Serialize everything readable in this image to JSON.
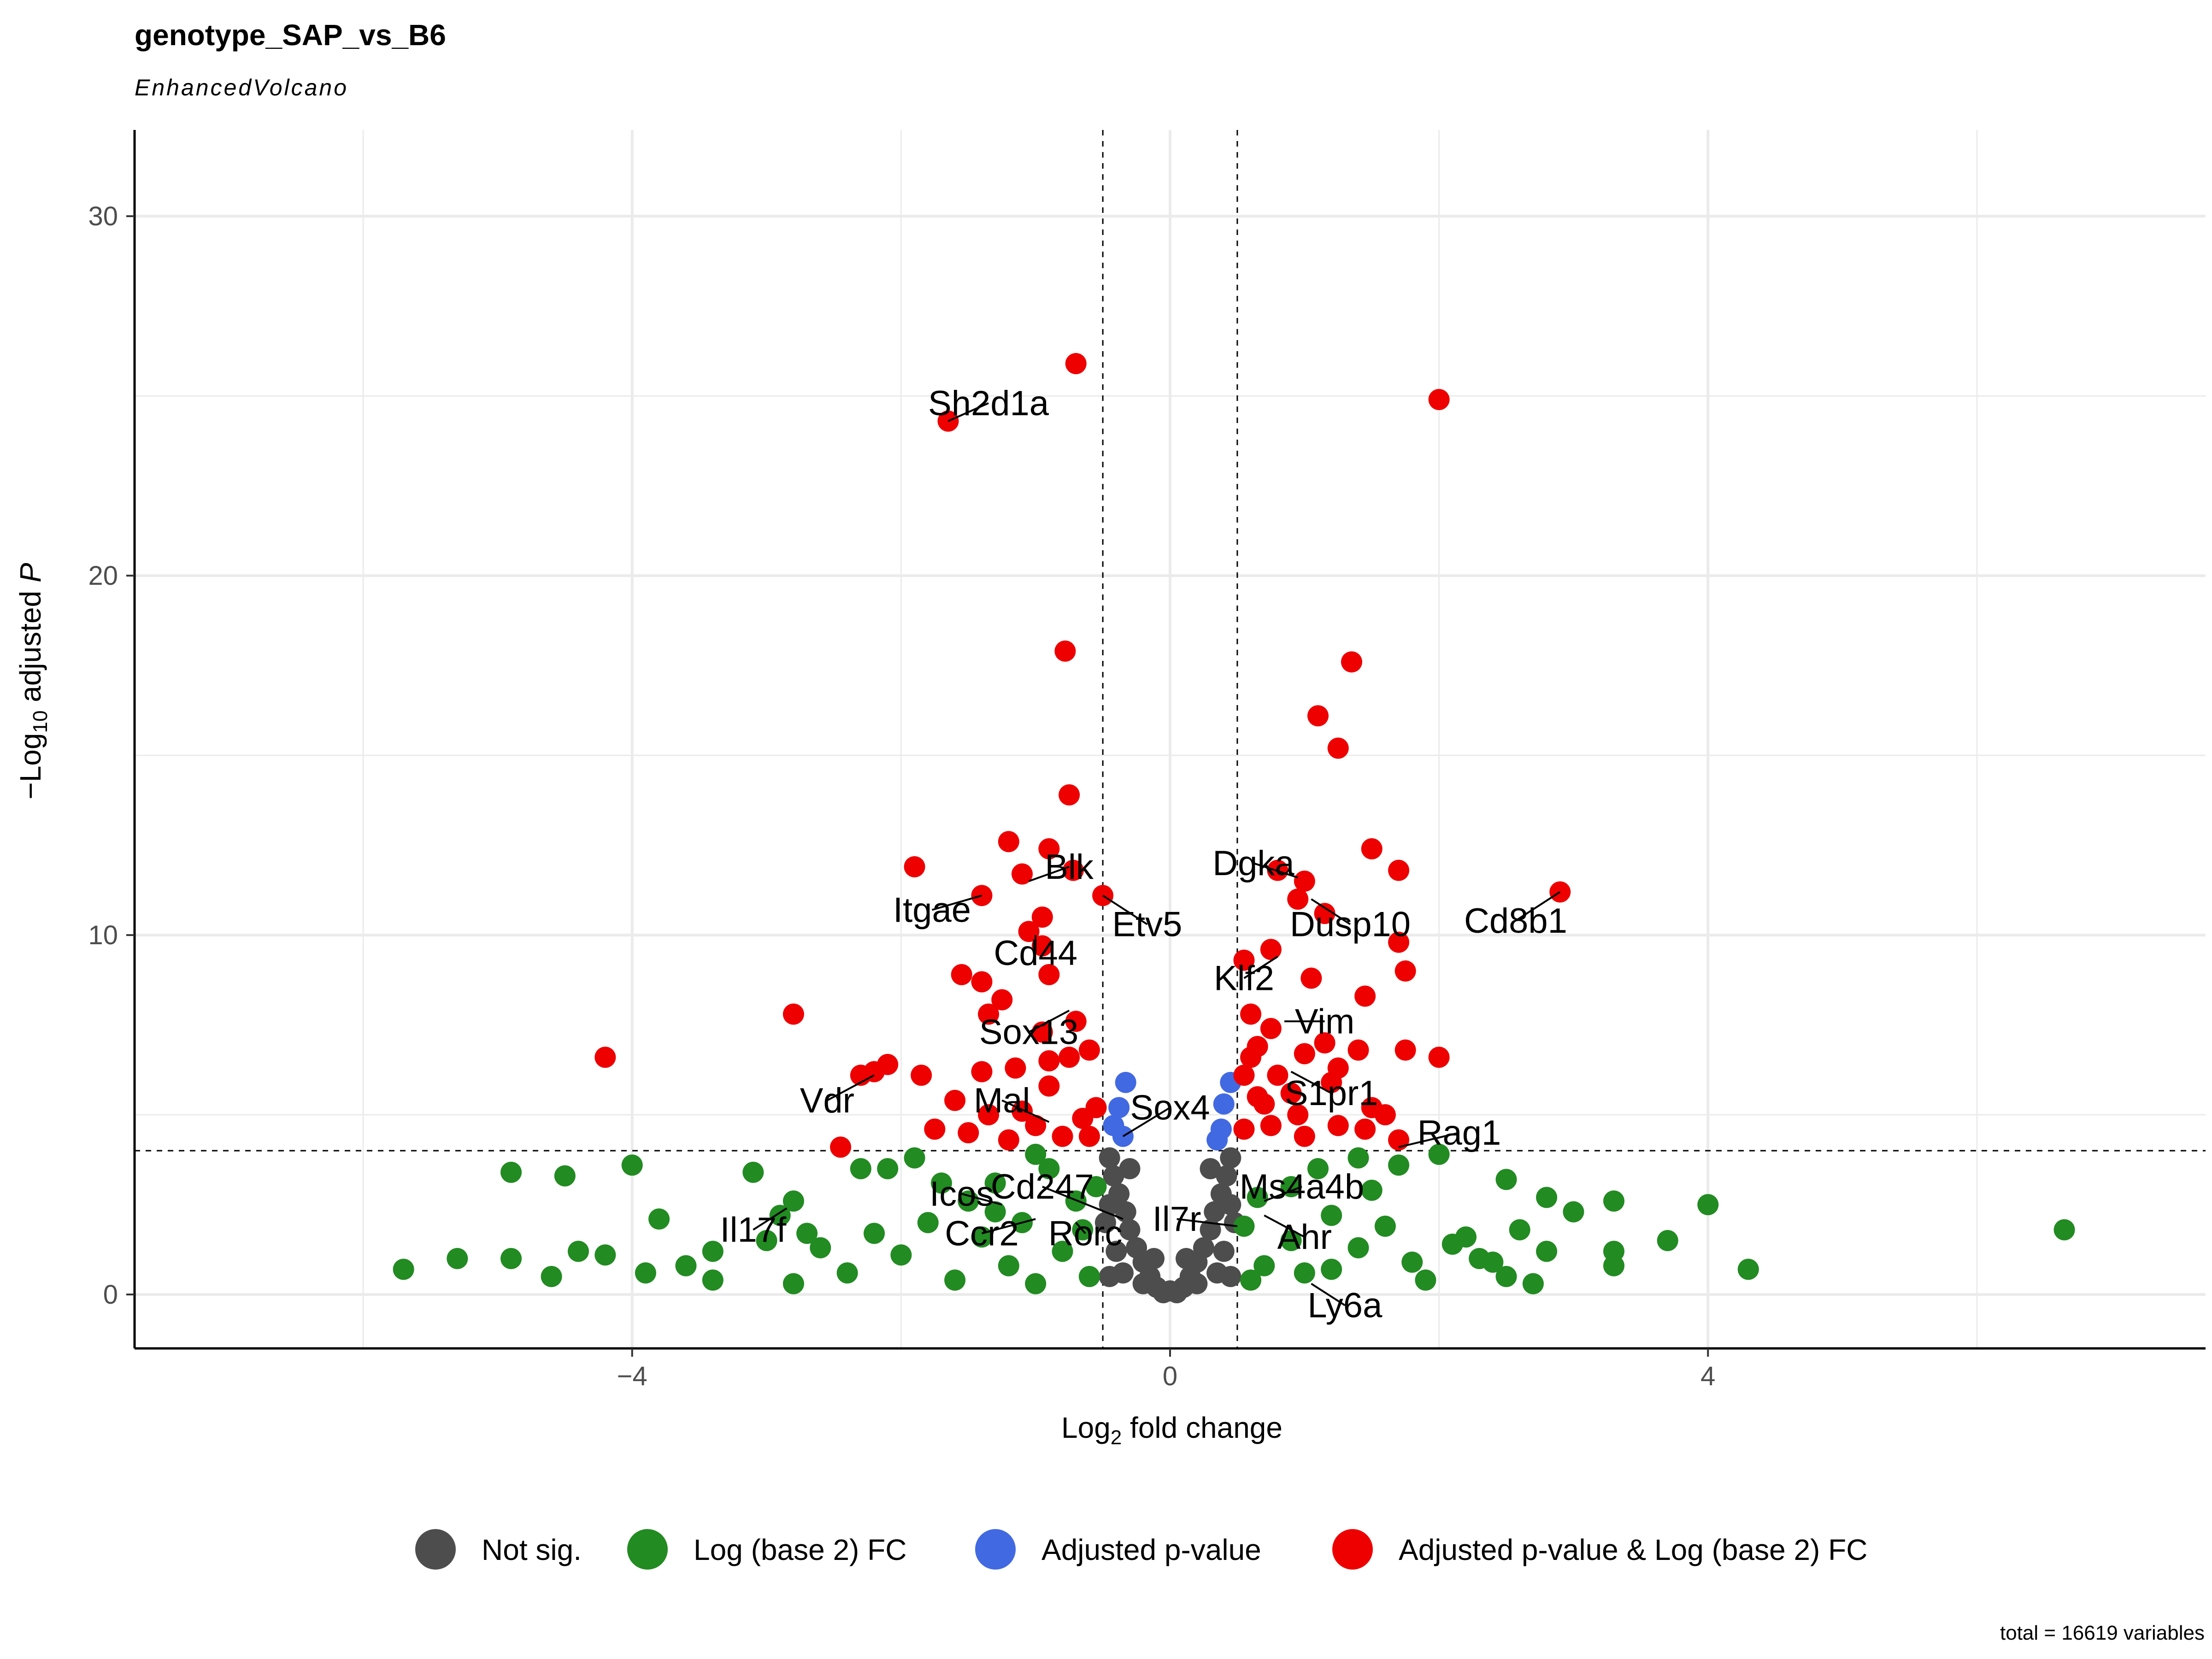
{
  "chart_data": {
    "type": "scatter",
    "title": "genotype_SAP_vs_B6",
    "subtitle": "EnhancedVolcano",
    "xlabel": {
      "main": "Log",
      "sub": "2",
      "rest": " fold change"
    },
    "ylabel": {
      "pre": "−Log",
      "sub": "10",
      "mid": " adjusted ",
      "italic": "P"
    },
    "xlim": [
      -7.7,
      7.7
    ],
    "ylim": [
      -1.5,
      32.4
    ],
    "x_ticks": [
      -4,
      0,
      4
    ],
    "y_ticks": [
      0,
      10,
      20,
      30
    ],
    "grid": true,
    "fc_cutoff": 0.5,
    "p_cutoff_log10": 4,
    "legend_position": "bottom",
    "caption": "total = 16619 variables",
    "colors": {
      "ns": "#4d4d4d",
      "fc": "#228b22",
      "p": "#4169e1",
      "both": "#ee0000"
    },
    "series": [
      {
        "name": "Not sig.",
        "key": "ns"
      },
      {
        "name": "Log (base 2) FC",
        "key": "fc"
      },
      {
        "name": "Adjusted p-value",
        "key": "p"
      },
      {
        "name": "Adjusted p-value & Log (base 2) FC",
        "key": "both"
      }
    ],
    "points": {
      "both": [
        [
          -0.7,
          25.9
        ],
        [
          2.0,
          24.9
        ],
        [
          -1.65,
          24.3
        ],
        [
          -0.78,
          17.9
        ],
        [
          1.35,
          17.6
        ],
        [
          1.1,
          16.1
        ],
        [
          1.25,
          15.2
        ],
        [
          -0.75,
          13.9
        ],
        [
          1.5,
          12.4
        ],
        [
          -1.2,
          12.6
        ],
        [
          -0.9,
          12.4
        ],
        [
          -1.9,
          11.9
        ],
        [
          -0.72,
          11.8
        ],
        [
          1.7,
          11.8
        ],
        [
          -1.1,
          11.7
        ],
        [
          2.9,
          11.2
        ],
        [
          -0.5,
          11.1
        ],
        [
          -1.4,
          11.1
        ],
        [
          0.8,
          11.8
        ],
        [
          1.0,
          11.5
        ],
        [
          0.95,
          11.0
        ],
        [
          1.15,
          10.6
        ],
        [
          -0.95,
          10.5
        ],
        [
          -1.05,
          10.1
        ],
        [
          1.7,
          9.8
        ],
        [
          0.75,
          9.6
        ],
        [
          -0.95,
          9.7
        ],
        [
          0.55,
          9.3
        ],
        [
          -1.55,
          8.9
        ],
        [
          -0.9,
          8.9
        ],
        [
          1.05,
          8.8
        ],
        [
          1.75,
          9.0
        ],
        [
          -1.4,
          8.7
        ],
        [
          -1.25,
          8.2
        ],
        [
          1.45,
          8.3
        ],
        [
          -2.8,
          7.8
        ],
        [
          -1.35,
          7.8
        ],
        [
          0.6,
          7.8
        ],
        [
          -0.7,
          7.6
        ],
        [
          -0.95,
          7.3
        ],
        [
          0.75,
          7.4
        ],
        [
          0.65,
          6.9
        ],
        [
          1.15,
          7.0
        ],
        [
          1.75,
          6.8
        ],
        [
          2.0,
          6.6
        ],
        [
          -4.2,
          6.6
        ],
        [
          -2.1,
          6.4
        ],
        [
          -2.2,
          6.2
        ],
        [
          -2.3,
          6.1
        ],
        [
          -1.85,
          6.1
        ],
        [
          -1.4,
          6.2
        ],
        [
          -1.15,
          6.3
        ],
        [
          -0.9,
          6.5
        ],
        [
          -0.75,
          6.6
        ],
        [
          -0.6,
          6.8
        ],
        [
          1.4,
          6.8
        ],
        [
          1.0,
          6.7
        ],
        [
          0.6,
          6.6
        ],
        [
          1.25,
          6.3
        ],
        [
          0.8,
          6.1
        ],
        [
          0.55,
          6.1
        ],
        [
          -1.6,
          5.4
        ],
        [
          -1.35,
          5.0
        ],
        [
          -1.75,
          4.6
        ],
        [
          -2.45,
          4.1
        ],
        [
          -1.5,
          4.5
        ],
        [
          1.2,
          5.9
        ],
        [
          0.9,
          5.6
        ],
        [
          1.5,
          5.2
        ],
        [
          0.7,
          5.3
        ],
        [
          -0.55,
          5.2
        ],
        [
          -0.65,
          4.9
        ],
        [
          -0.8,
          4.4
        ],
        [
          -1.0,
          4.7
        ],
        [
          -1.2,
          4.3
        ],
        [
          -0.6,
          4.4
        ],
        [
          0.55,
          4.6
        ],
        [
          0.75,
          4.7
        ],
        [
          1.0,
          4.4
        ],
        [
          1.25,
          4.7
        ],
        [
          1.45,
          4.6
        ],
        [
          1.7,
          4.3
        ],
        [
          0.95,
          5.0
        ],
        [
          -0.9,
          5.8
        ],
        [
          -1.1,
          5.1
        ],
        [
          1.6,
          5.0
        ],
        [
          0.65,
          5.5
        ]
      ],
      "p": [
        [
          -0.33,
          5.9
        ],
        [
          0.45,
          5.9
        ],
        [
          -0.38,
          5.2
        ],
        [
          0.4,
          5.3
        ],
        [
          -0.42,
          4.7
        ],
        [
          0.38,
          4.6
        ],
        [
          -0.35,
          4.4
        ],
        [
          0.35,
          4.3
        ]
      ],
      "fc": [
        [
          -5.7,
          0.7
        ],
        [
          -4.9,
          3.4
        ],
        [
          -4.5,
          3.3
        ],
        [
          -4.0,
          3.6
        ],
        [
          -3.1,
          3.4
        ],
        [
          -2.8,
          2.6
        ],
        [
          -2.9,
          2.2
        ],
        [
          -3.8,
          2.1
        ],
        [
          -4.9,
          1.0
        ],
        [
          -4.4,
          1.2
        ],
        [
          -4.2,
          1.1
        ],
        [
          -3.9,
          0.6
        ],
        [
          -3.6,
          0.8
        ],
        [
          -3.4,
          1.2
        ],
        [
          -3.0,
          1.5
        ],
        [
          -2.7,
          1.7
        ],
        [
          -2.6,
          1.3
        ],
        [
          -2.8,
          0.3
        ],
        [
          -3.4,
          0.4
        ],
        [
          -4.6,
          0.5
        ],
        [
          -5.3,
          1.0
        ],
        [
          -2.3,
          3.5
        ],
        [
          -2.1,
          3.5
        ],
        [
          -1.9,
          3.8
        ],
        [
          -1.7,
          3.1
        ],
        [
          -1.5,
          2.6
        ],
        [
          -1.3,
          3.1
        ],
        [
          -1.1,
          2.0
        ],
        [
          -0.9,
          3.5
        ],
        [
          -0.7,
          2.6
        ],
        [
          -0.55,
          3.0
        ],
        [
          6.65,
          1.8
        ],
        [
          4.0,
          2.5
        ],
        [
          4.3,
          0.7
        ],
        [
          3.7,
          1.5
        ],
        [
          3.3,
          2.6
        ],
        [
          3.0,
          2.3
        ],
        [
          2.8,
          2.7
        ],
        [
          2.5,
          3.2
        ],
        [
          2.6,
          1.8
        ],
        [
          3.3,
          1.2
        ],
        [
          3.3,
          0.8
        ],
        [
          2.8,
          1.2
        ],
        [
          2.7,
          0.3
        ],
        [
          2.4,
          0.9
        ],
        [
          2.2,
          1.6
        ],
        [
          2.0,
          3.9
        ],
        [
          1.7,
          3.6
        ],
        [
          1.5,
          2.9
        ],
        [
          1.2,
          2.2
        ],
        [
          0.9,
          3.0
        ],
        [
          0.65,
          2.7
        ],
        [
          0.55,
          1.9
        ],
        [
          0.7,
          0.8
        ],
        [
          1.0,
          0.6
        ],
        [
          1.4,
          1.3
        ],
        [
          1.9,
          0.4
        ],
        [
          2.3,
          1.0
        ],
        [
          -0.6,
          0.5
        ],
        [
          -0.8,
          1.2
        ],
        [
          -1.2,
          0.8
        ],
        [
          -1.6,
          0.4
        ],
        [
          -2.0,
          1.1
        ],
        [
          -2.4,
          0.6
        ],
        [
          -2.2,
          1.7
        ],
        [
          -1.8,
          2.0
        ],
        [
          -1.4,
          1.6
        ],
        [
          -1.0,
          0.3
        ],
        [
          -0.65,
          1.8
        ],
        [
          0.6,
          0.4
        ],
        [
          0.9,
          1.5
        ],
        [
          1.2,
          0.7
        ],
        [
          1.6,
          1.9
        ],
        [
          2.1,
          1.4
        ],
        [
          2.5,
          0.5
        ],
        [
          1.8,
          0.9
        ],
        [
          1.1,
          3.5
        ],
        [
          1.4,
          3.8
        ],
        [
          -1.0,
          3.9
        ],
        [
          -1.3,
          2.3
        ]
      ],
      "ns": [
        [
          0.0,
          0.1
        ],
        [
          -0.1,
          0.2
        ],
        [
          0.1,
          0.2
        ],
        [
          -0.15,
          0.5
        ],
        [
          0.15,
          0.5
        ],
        [
          -0.2,
          0.9
        ],
        [
          0.2,
          0.9
        ],
        [
          -0.25,
          1.3
        ],
        [
          0.25,
          1.3
        ],
        [
          -0.3,
          1.8
        ],
        [
          0.3,
          1.8
        ],
        [
          -0.33,
          2.3
        ],
        [
          0.33,
          2.3
        ],
        [
          -0.38,
          2.8
        ],
        [
          0.38,
          2.8
        ],
        [
          -0.42,
          3.3
        ],
        [
          0.42,
          3.3
        ],
        [
          -0.45,
          3.8
        ],
        [
          0.45,
          3.8
        ],
        [
          -0.05,
          0.05
        ],
        [
          0.05,
          0.05
        ],
        [
          -0.35,
          0.6
        ],
        [
          0.35,
          0.6
        ],
        [
          -0.45,
          0.5
        ],
        [
          0.45,
          0.5
        ],
        [
          -0.4,
          1.2
        ],
        [
          0.4,
          1.2
        ],
        [
          -0.48,
          2.0
        ],
        [
          0.48,
          2.0
        ],
        [
          -0.3,
          3.5
        ],
        [
          0.3,
          3.5
        ],
        [
          -0.45,
          2.5
        ],
        [
          0.45,
          2.5
        ],
        [
          -0.2,
          0.3
        ],
        [
          0.2,
          0.3
        ],
        [
          -0.12,
          1.0
        ],
        [
          0.12,
          1.0
        ]
      ]
    },
    "annotations": [
      {
        "label": "Sh2d1a",
        "x": -1.65,
        "y": 24.3,
        "tx": -1.35,
        "ty": 24.8
      },
      {
        "label": "Blk",
        "x": -1.05,
        "y": 11.5,
        "tx": -0.75,
        "ty": 11.9
      },
      {
        "label": "Itgae",
        "x": -1.4,
        "y": 11.1,
        "tx": -1.77,
        "ty": 10.7
      },
      {
        "label": "Etv5",
        "x": -0.5,
        "y": 11.1,
        "tx": -0.17,
        "ty": 10.3
      },
      {
        "label": "Dgka",
        "x": 0.95,
        "y": 11.6,
        "tx": 0.62,
        "ty": 12.0
      },
      {
        "label": "Dusp10",
        "x": 1.05,
        "y": 11.0,
        "tx": 1.34,
        "ty": 10.3
      },
      {
        "label": "Cd8b1",
        "x": 2.9,
        "y": 11.2,
        "tx": 2.57,
        "ty": 10.4
      },
      {
        "label": "Cd44",
        "x": -1.0,
        "y": 10.0,
        "tx": -1.0,
        "ty": 9.5
      },
      {
        "label": "Klf2",
        "x": 0.8,
        "y": 9.4,
        "tx": 0.55,
        "ty": 8.8
      },
      {
        "label": "Vim",
        "x": 0.85,
        "y": 7.6,
        "tx": 1.15,
        "ty": 7.6
      },
      {
        "label": "Sox13",
        "x": -0.75,
        "y": 7.9,
        "tx": -1.05,
        "ty": 7.3
      },
      {
        "label": "Vdr",
        "x": -2.2,
        "y": 6.1,
        "tx": -2.55,
        "ty": 5.4
      },
      {
        "label": "S1pr1",
        "x": 0.9,
        "y": 6.2,
        "tx": 1.2,
        "ty": 5.6
      },
      {
        "label": "Mal",
        "x": -0.9,
        "y": 4.8,
        "tx": -1.25,
        "ty": 5.4
      },
      {
        "label": "Sox4",
        "x": -0.35,
        "y": 4.4,
        "tx": 0.0,
        "ty": 5.2
      },
      {
        "label": "Rag1",
        "x": 1.7,
        "y": 4.1,
        "tx": 2.15,
        "ty": 4.5
      },
      {
        "label": "Cd247",
        "x": -0.35,
        "y": 2.1,
        "tx": -0.95,
        "ty": 3.0
      },
      {
        "label": "Ms4a4b",
        "x": 0.7,
        "y": 2.6,
        "tx": 0.98,
        "ty": 3.0
      },
      {
        "label": "Icos",
        "x": -1.25,
        "y": 2.5,
        "tx": -1.55,
        "ty": 2.8
      },
      {
        "label": "Il17f",
        "x": -2.85,
        "y": 2.4,
        "tx": -3.1,
        "ty": 1.8
      },
      {
        "label": "Ccr2",
        "x": -1.0,
        "y": 2.1,
        "tx": -1.4,
        "ty": 1.7
      },
      {
        "label": "Rorc",
        "x": -0.7,
        "y": 2.0,
        "tx": -0.63,
        "ty": 1.7
      },
      {
        "label": "Il7r",
        "x": 0.5,
        "y": 1.9,
        "tx": 0.05,
        "ty": 2.1
      },
      {
        "label": "Ahr",
        "x": 0.7,
        "y": 2.2,
        "tx": 1.0,
        "ty": 1.6
      },
      {
        "label": "Ly6a",
        "x": 1.05,
        "y": 0.3,
        "tx": 1.3,
        "ty": -0.3
      }
    ]
  }
}
